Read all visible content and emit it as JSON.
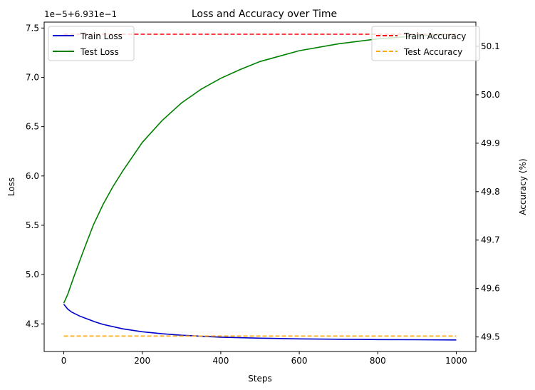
{
  "chart_data": {
    "type": "line",
    "title": "Loss and Accuracy over Time",
    "xlabel": "Steps",
    "ylabel_left": "Loss",
    "ylabel_right": "Accuracy (%)",
    "offset_text": "1e−5+6.931e−1",
    "xlim": [
      -50,
      1050
    ],
    "ylim_left": [
      4.22,
      7.56
    ],
    "ylim_right": [
      49.47,
      50.15
    ],
    "x_ticks": [
      0,
      200,
      400,
      600,
      800,
      1000
    ],
    "y_left_ticks": [
      4.5,
      5.0,
      5.5,
      6.0,
      6.5,
      7.0,
      7.5
    ],
    "y_right_ticks": [
      49.5,
      49.6,
      49.7,
      49.8,
      49.9,
      50.0,
      50.1
    ],
    "grid": false,
    "legend_left_placement": "upper-left",
    "legend_right_placement": "upper-right",
    "left_series": [
      {
        "name": "Train Loss",
        "color": "#0000cc",
        "style": "solid",
        "x": [
          0,
          10,
          20,
          40,
          60,
          80,
          100,
          150,
          200,
          250,
          300,
          400,
          500,
          600,
          700,
          800,
          900,
          1000
        ],
        "values": [
          4.7,
          4.65,
          4.62,
          4.58,
          4.55,
          4.52,
          4.495,
          4.45,
          4.42,
          4.4,
          4.385,
          4.365,
          4.355,
          4.348,
          4.344,
          4.341,
          4.339,
          4.337
        ]
      },
      {
        "name": "Test Loss",
        "color": "#008000",
        "style": "solid",
        "x": [
          0,
          10,
          25,
          50,
          75,
          100,
          125,
          150,
          200,
          250,
          300,
          350,
          400,
          450,
          500,
          600,
          700,
          800,
          900,
          1000
        ],
        "values": [
          4.71,
          4.8,
          4.97,
          5.24,
          5.5,
          5.71,
          5.89,
          6.05,
          6.34,
          6.56,
          6.74,
          6.88,
          6.99,
          7.08,
          7.16,
          7.27,
          7.34,
          7.39,
          7.42,
          7.44
        ]
      }
    ],
    "right_series": [
      {
        "name": "Train Accuracy",
        "color": "#ff0000",
        "style": "dashed",
        "x": [
          0,
          1000
        ],
        "values": [
          50.125,
          50.125
        ]
      },
      {
        "name": "Test Accuracy",
        "color": "#ffa500",
        "style": "dashed",
        "x": [
          0,
          1000
        ],
        "values": [
          49.502,
          49.502
        ]
      }
    ]
  }
}
